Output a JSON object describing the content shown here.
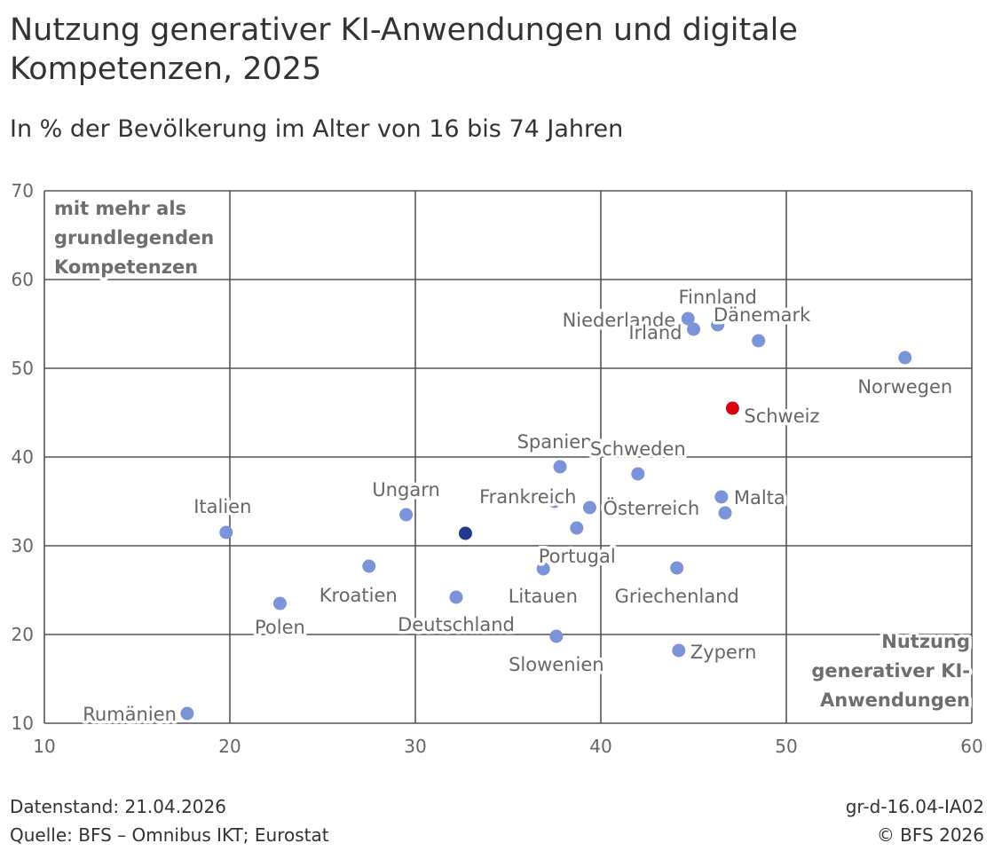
{
  "title": "Nutzung generativer KI-Anwendungen und digitale Kompetenzen, 2025",
  "subtitle": "In % der Bevölkerung im Alter von 16 bis 74 Jahren",
  "footer": {
    "date": "Datenstand: 21.04.2026",
    "source": "Quelle: BFS – Omnibus IKT; Eurostat",
    "code": "gr-d-16.04-IA02",
    "copyright": "© BFS 2026"
  },
  "chart_data": {
    "type": "scatter",
    "xlabel": "Nutzung generativer KI-Anwendungen",
    "ylabel": "mit mehr als grundlegenden Kompetenzen",
    "xlim": [
      10,
      60
    ],
    "ylim": [
      10,
      70
    ],
    "xticks": [
      10,
      20,
      30,
      40,
      50,
      60
    ],
    "yticks": [
      10,
      20,
      30,
      40,
      50,
      60,
      70
    ],
    "grid": true,
    "colors": {
      "default": "#7b93d9",
      "highlight": "#d7000f",
      "reference": "#1f3a8a",
      "grid": "#555555",
      "label": "#666666"
    },
    "points": [
      {
        "label": "Rumänien",
        "x": 17.7,
        "y": 11.1
      },
      {
        "label": "Italien",
        "x": 19.8,
        "y": 31.5
      },
      {
        "label": "Polen",
        "x": 22.7,
        "y": 23.5
      },
      {
        "label": "Kroatien",
        "x": 27.5,
        "y": 27.7
      },
      {
        "label": "Ungarn",
        "x": 29.5,
        "y": 33.5
      },
      {
        "label": "Deutschland",
        "x": 32.2,
        "y": 24.2
      },
      {
        "label": "",
        "x": 32.7,
        "y": 31.4,
        "kind": "reference"
      },
      {
        "label": "Portugal",
        "x": 36.9,
        "y": 27.4
      },
      {
        "label": "Frankreich",
        "x": 37.5,
        "y": 35.0
      },
      {
        "label": "Slowenien",
        "x": 37.6,
        "y": 19.8
      },
      {
        "label": "Spanien",
        "x": 37.8,
        "y": 38.9
      },
      {
        "label": "Litauen",
        "x": 38.7,
        "y": 32.0
      },
      {
        "label": "Österreich",
        "x": 39.4,
        "y": 34.3
      },
      {
        "label": "Schweden",
        "x": 42.0,
        "y": 38.1
      },
      {
        "label": "Griechenland",
        "x": 44.1,
        "y": 27.5
      },
      {
        "label": "Zypern",
        "x": 44.2,
        "y": 18.2
      },
      {
        "label": "Niederlande",
        "x": 44.7,
        "y": 55.6
      },
      {
        "label": "Irland",
        "x": 45.0,
        "y": 54.4
      },
      {
        "label": "Finnland",
        "x": 46.3,
        "y": 54.9
      },
      {
        "label": "Malta",
        "x": 46.5,
        "y": 35.5
      },
      {
        "label": "",
        "x": 46.7,
        "y": 33.7
      },
      {
        "label": "Schweiz",
        "x": 47.1,
        "y": 45.5,
        "kind": "highlight"
      },
      {
        "label": "Dänemark",
        "x": 48.5,
        "y": 53.1
      },
      {
        "label": "Norwegen",
        "x": 56.4,
        "y": 51.2
      }
    ]
  }
}
